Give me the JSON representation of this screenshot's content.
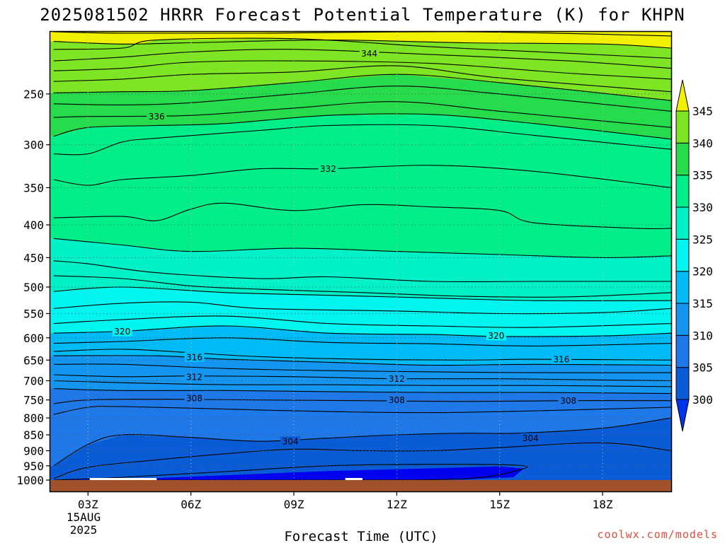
{
  "chart_data": {
    "type": "heatmap",
    "title": "2025081502 HRRR Forecast Potential Temperature (K) for KHPN",
    "xlabel": "Forecast Time (UTC)",
    "ylabel": "",
    "x_ticks": [
      "03Z",
      "06Z",
      "09Z",
      "12Z",
      "15Z",
      "18Z"
    ],
    "x_hours": [
      3,
      6,
      9,
      12,
      15,
      18
    ],
    "xlim": [
      1.9,
      20.0
    ],
    "date_label": [
      "15AUG",
      "2025"
    ],
    "y_ticks": [
      250,
      300,
      350,
      400,
      450,
      500,
      550,
      600,
      650,
      700,
      750,
      800,
      850,
      900,
      950,
      1000
    ],
    "ylim": [
      200,
      1000
    ],
    "y_scale": "log",
    "grid": true,
    "colorbar": {
      "levels": [
        300,
        305,
        310,
        315,
        320,
        325,
        330,
        335,
        340,
        345
      ],
      "colors": [
        "#0033ee",
        "#0a5cd6",
        "#1e78e8",
        "#1496f0",
        "#00bbf5",
        "#00f5f0",
        "#00f0c8",
        "#00ee8a",
        "#27dc4c",
        "#7ee524",
        "#b4f000",
        "#f0f000"
      ],
      "position": "right"
    },
    "contour_labels": [
      {
        "t": 11.2,
        "p": 216,
        "text": "344"
      },
      {
        "t": 5.0,
        "p": 271,
        "text": "336"
      },
      {
        "t": 10.0,
        "p": 327,
        "text": "332"
      },
      {
        "t": 4.0,
        "p": 586,
        "text": "320"
      },
      {
        "t": 14.9,
        "p": 595,
        "text": "320"
      },
      {
        "t": 6.1,
        "p": 643,
        "text": "316"
      },
      {
        "t": 16.8,
        "p": 648,
        "text": "316"
      },
      {
        "t": 6.1,
        "p": 690,
        "text": "312"
      },
      {
        "t": 12.0,
        "p": 695,
        "text": "312"
      },
      {
        "t": 6.1,
        "p": 745,
        "text": "308"
      },
      {
        "t": 12.0,
        "p": 750,
        "text": "308"
      },
      {
        "t": 17.0,
        "p": 752,
        "text": "308"
      },
      {
        "t": 8.9,
        "p": 870,
        "text": "304"
      },
      {
        "t": 15.9,
        "p": 860,
        "text": "304"
      }
    ],
    "contours": [
      {
        "value": 347,
        "points": [
          [
            2,
            200
          ],
          [
            4,
            201
          ],
          [
            8,
            201
          ],
          [
            14,
            200
          ],
          [
            20,
            203
          ]
        ]
      },
      {
        "value": 345,
        "points": [
          [
            2,
            207
          ],
          [
            4,
            209
          ],
          [
            6,
            208
          ],
          [
            10,
            206
          ],
          [
            14,
            208
          ],
          [
            18,
            209
          ],
          [
            20,
            212
          ]
        ]
      },
      {
        "value": 344,
        "points": [
          [
            2,
            213
          ],
          [
            4,
            212
          ],
          [
            5,
            206
          ],
          [
            9,
            205
          ],
          [
            13,
            211
          ],
          [
            17,
            216
          ],
          [
            20,
            220
          ]
        ]
      },
      {
        "value": 343,
        "points": [
          [
            2,
            222
          ],
          [
            4,
            219
          ],
          [
            6,
            215
          ],
          [
            9,
            213
          ],
          [
            13,
            217
          ],
          [
            17,
            222
          ],
          [
            20,
            228
          ]
        ]
      },
      {
        "value": 342,
        "points": [
          [
            2,
            230
          ],
          [
            4,
            228
          ],
          [
            6,
            223
          ],
          [
            9,
            222
          ],
          [
            13,
            224
          ],
          [
            17,
            232
          ],
          [
            20,
            237
          ]
        ]
      },
      {
        "value": 341,
        "points": [
          [
            2,
            239
          ],
          [
            4,
            237
          ],
          [
            6,
            233
          ],
          [
            9,
            231
          ],
          [
            12,
            226
          ],
          [
            15,
            236
          ],
          [
            20,
            248
          ]
        ]
      },
      {
        "value": 340,
        "points": [
          [
            2,
            249
          ],
          [
            4,
            248
          ],
          [
            6,
            247
          ],
          [
            9,
            240
          ],
          [
            12,
            233
          ],
          [
            15,
            240
          ],
          [
            20,
            256
          ]
        ]
      },
      {
        "value": 338,
        "points": [
          [
            2,
            259
          ],
          [
            4,
            260
          ],
          [
            6,
            258
          ],
          [
            9,
            250
          ],
          [
            12,
            243
          ],
          [
            15,
            250
          ],
          [
            20,
            266
          ]
        ]
      },
      {
        "value": 336,
        "points": [
          [
            2,
            272
          ],
          [
            3,
            271
          ],
          [
            6,
            270
          ],
          [
            9,
            263
          ],
          [
            12,
            257
          ],
          [
            15,
            266
          ],
          [
            20,
            282
          ]
        ]
      },
      {
        "value": 335,
        "points": [
          [
            2,
            291
          ],
          [
            3,
            282
          ],
          [
            5,
            280
          ],
          [
            7,
            278
          ],
          [
            10,
            270
          ],
          [
            13,
            269
          ],
          [
            16,
            278
          ],
          [
            20,
            294
          ]
        ]
      },
      {
        "value": 334,
        "points": [
          [
            2,
            310
          ],
          [
            3,
            310
          ],
          [
            4,
            297
          ],
          [
            5,
            293
          ],
          [
            8,
            285
          ],
          [
            10,
            280
          ],
          [
            13,
            280
          ],
          [
            16,
            290
          ],
          [
            20,
            305
          ]
        ]
      },
      {
        "value": 332,
        "points": [
          [
            2,
            340
          ],
          [
            3,
            347
          ],
          [
            4,
            340
          ],
          [
            6,
            335
          ],
          [
            8,
            327
          ],
          [
            10,
            327
          ],
          [
            13,
            323
          ],
          [
            16,
            330
          ],
          [
            20,
            350
          ]
        ]
      },
      {
        "value": 331,
        "points": [
          [
            2,
            390
          ],
          [
            4,
            388
          ],
          [
            5,
            394
          ],
          [
            6,
            378
          ],
          [
            7,
            370
          ],
          [
            9,
            380
          ],
          [
            11,
            372
          ],
          [
            13,
            375
          ],
          [
            15,
            380
          ],
          [
            16,
            397
          ],
          [
            19,
            405
          ],
          [
            20,
            405
          ]
        ]
      },
      {
        "value": 330,
        "points": [
          [
            2,
            420
          ],
          [
            4,
            430
          ],
          [
            6,
            440
          ],
          [
            9,
            435
          ],
          [
            12,
            440
          ],
          [
            15,
            445
          ],
          [
            18,
            450
          ],
          [
            20,
            447
          ]
        ]
      },
      {
        "value": 328,
        "points": [
          [
            2,
            455
          ],
          [
            3,
            460
          ],
          [
            5,
            475
          ],
          [
            8,
            485
          ],
          [
            10,
            482
          ],
          [
            13,
            490
          ],
          [
            16,
            490
          ],
          [
            20,
            490
          ]
        ]
      },
      {
        "value": 326,
        "points": [
          [
            2,
            480
          ],
          [
            4,
            485
          ],
          [
            6,
            498
          ],
          [
            8,
            504
          ],
          [
            11,
            510
          ],
          [
            14,
            517
          ],
          [
            17,
            518
          ],
          [
            20,
            510
          ]
        ]
      },
      {
        "value": 324,
        "points": [
          [
            2,
            508
          ],
          [
            4,
            500
          ],
          [
            7,
            510
          ],
          [
            10,
            515
          ],
          [
            13,
            520
          ],
          [
            16,
            525
          ],
          [
            20,
            525
          ]
        ]
      },
      {
        "value": 323,
        "points": [
          [
            2,
            540
          ],
          [
            4,
            530
          ],
          [
            6,
            528
          ],
          [
            8,
            540
          ],
          [
            12,
            545
          ],
          [
            15,
            550
          ],
          [
            18,
            548
          ],
          [
            20,
            540
          ]
        ]
      },
      {
        "value": 322,
        "points": [
          [
            2,
            570
          ],
          [
            4,
            562
          ],
          [
            7,
            555
          ],
          [
            10,
            570
          ],
          [
            13,
            575
          ],
          [
            16,
            578
          ],
          [
            20,
            570
          ]
        ]
      },
      {
        "value": 320,
        "points": [
          [
            2,
            590
          ],
          [
            4,
            586
          ],
          [
            7,
            575
          ],
          [
            10,
            590
          ],
          [
            13,
            593
          ],
          [
            15,
            597
          ],
          [
            18,
            596
          ],
          [
            20,
            590
          ]
        ]
      },
      {
        "value": 318,
        "points": [
          [
            2,
            612
          ],
          [
            4,
            608
          ],
          [
            7,
            600
          ],
          [
            10,
            610
          ],
          [
            13,
            613
          ],
          [
            16,
            618
          ],
          [
            20,
            612
          ]
        ]
      },
      {
        "value": 316,
        "points": [
          [
            2,
            630
          ],
          [
            4,
            625
          ],
          [
            6,
            633
          ],
          [
            8,
            642
          ],
          [
            11,
            648
          ],
          [
            14,
            650
          ],
          [
            16,
            648
          ],
          [
            20,
            650
          ]
        ]
      },
      {
        "value": 315,
        "points": [
          [
            2,
            640
          ],
          [
            5,
            640
          ],
          [
            7,
            648
          ],
          [
            10,
            655
          ],
          [
            13,
            662
          ],
          [
            16,
            660
          ],
          [
            20,
            662
          ]
        ]
      },
      {
        "value": 314,
        "points": [
          [
            2,
            660
          ],
          [
            4,
            660
          ],
          [
            7,
            670
          ],
          [
            10,
            675
          ],
          [
            13,
            678
          ],
          [
            16,
            680
          ],
          [
            20,
            680
          ]
        ]
      },
      {
        "value": 312,
        "points": [
          [
            2,
            685
          ],
          [
            4,
            690
          ],
          [
            6,
            688
          ],
          [
            9,
            690
          ],
          [
            12,
            695
          ],
          [
            15,
            695
          ],
          [
            18,
            698
          ],
          [
            20,
            700
          ]
        ]
      },
      {
        "value": 311,
        "points": [
          [
            2,
            700
          ],
          [
            4,
            705
          ],
          [
            7,
            710
          ],
          [
            10,
            710
          ],
          [
            13,
            712
          ],
          [
            16,
            712
          ],
          [
            20,
            715
          ]
        ]
      },
      {
        "value": 310,
        "points": [
          [
            2,
            720
          ],
          [
            4,
            725
          ],
          [
            7,
            725
          ],
          [
            10,
            728
          ],
          [
            13,
            730
          ],
          [
            16,
            730
          ],
          [
            20,
            733
          ]
        ]
      },
      {
        "value": 308,
        "points": [
          [
            2,
            760
          ],
          [
            3,
            750
          ],
          [
            5,
            748
          ],
          [
            8,
            750
          ],
          [
            11,
            752
          ],
          [
            14,
            754
          ],
          [
            17,
            752
          ],
          [
            20,
            752
          ]
        ]
      },
      {
        "value": 306,
        "points": [
          [
            2,
            790
          ],
          [
            3,
            770
          ],
          [
            4,
            768
          ],
          [
            7,
            775
          ],
          [
            10,
            782
          ],
          [
            13,
            785
          ],
          [
            16,
            780
          ],
          [
            18,
            775
          ],
          [
            20,
            770
          ]
        ]
      },
      {
        "value": 305,
        "points": [
          [
            2,
            950
          ],
          [
            3,
            880
          ],
          [
            4,
            850
          ],
          [
            6,
            858
          ],
          [
            8,
            870
          ],
          [
            10,
            860
          ],
          [
            12,
            850
          ],
          [
            14,
            845
          ],
          [
            15.5,
            845
          ],
          [
            18,
            830
          ],
          [
            20,
            800
          ]
        ]
      },
      {
        "value": 304,
        "points": [
          [
            2,
            995
          ],
          [
            3,
            955
          ],
          [
            5,
            930
          ],
          [
            7,
            910
          ],
          [
            9,
            895
          ],
          [
            11,
            900
          ],
          [
            13,
            900
          ],
          [
            15,
            890
          ],
          [
            18,
            875
          ],
          [
            20,
            900
          ]
        ]
      },
      {
        "value": 303,
        "points": [
          [
            2,
            1000
          ],
          [
            4,
            990
          ],
          [
            7,
            970
          ],
          [
            10,
            950
          ],
          [
            13,
            945
          ],
          [
            15.5,
            948
          ],
          [
            15.6,
            963
          ],
          [
            14,
            995
          ],
          [
            10,
            1000
          ],
          [
            4,
            1000
          ]
        ]
      }
    ],
    "cold_pool": [
      [
        2,
        1000
      ],
      [
        5,
        993
      ],
      [
        8,
        978
      ],
      [
        10,
        968
      ],
      [
        12,
        962
      ],
      [
        15,
        952
      ],
      [
        15.7,
        960
      ],
      [
        15.4,
        990
      ],
      [
        14,
        998
      ],
      [
        10,
        1000
      ]
    ],
    "missing_bars": [
      [
        3.05,
        5.0
      ],
      [
        10.5,
        11.0
      ]
    ],
    "ground_color": "#a0522d"
  },
  "watermark": "coolwx.com/models"
}
